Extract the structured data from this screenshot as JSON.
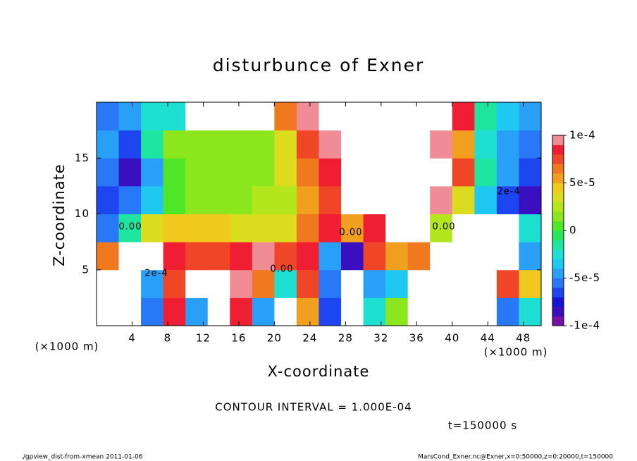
{
  "chart_data": {
    "type": "heatmap",
    "title": "disturbunce of Exner",
    "x_label": "X-coordinate",
    "y_label": "Z-coordinate",
    "x_unit": "(×1000 m)",
    "xlim": [
      0,
      50
    ],
    "ylim": [
      0,
      20
    ],
    "xticks": [
      4,
      8,
      12,
      16,
      20,
      24,
      28,
      32,
      36,
      40,
      44,
      48
    ],
    "yticks": [
      5,
      10,
      15
    ],
    "clim": [
      -0.0001,
      0.0001
    ],
    "cticks": [
      {
        "value": 0.0001,
        "label": "1e-4"
      },
      {
        "value": 5e-05,
        "label": "5e-5"
      },
      0,
      {
        "value": -5e-05,
        "label": "-5e-5"
      },
      {
        "value": -0.0001,
        "label": "-1e-4"
      }
    ],
    "colors": [
      "#7a0fa8",
      "#3a0fc0",
      "#1414d8",
      "#1e46f0",
      "#2878f8",
      "#28a0f8",
      "#1ec8f0",
      "#1ee0d2",
      "#1ee6a0",
      "#28e65a",
      "#50e628",
      "#8ce61e",
      "#b4e61e",
      "#dcdc1e",
      "#f0c81e",
      "#f0a01e",
      "#f0781e",
      "#f04628",
      "#f01e32",
      "#f08c96"
    ],
    "out_of_range_color": "#ffffff",
    "z": [
      [
        0.0002,
        0.0002,
        -6e-05,
        8e-05,
        -5e-05,
        0.0002,
        8e-05,
        -5e-05,
        0.0002,
        5e-05,
        -7e-05,
        0.0002,
        -3e-05,
        1e-05,
        0.0002,
        0.0002,
        -0.0002,
        -0.0002,
        -6e-05,
        -3e-05
      ],
      [
        0.0002,
        0.0002,
        -5e-05,
        7e-05,
        0.0002,
        0.0002,
        9e-05,
        6e-05,
        -3e-05,
        7e-05,
        -6e-05,
        0.0002,
        -5e-05,
        -4e-05,
        -0.0002,
        0.0002,
        -0.0002,
        -0.0002,
        7e-05,
        4e-05
      ],
      [
        6e-05,
        0.0002,
        0.0002,
        8e-05,
        7e-05,
        7e-05,
        8e-05,
        9e-05,
        7e-05,
        8e-05,
        -5e-05,
        -8e-05,
        7e-05,
        5e-05,
        6e-05,
        0.0002,
        -0.0002,
        -0.0002,
        -0.0002,
        -5e-05
      ],
      [
        -6e-05,
        -2e-05,
        3e-05,
        4e-05,
        4e-05,
        4e-05,
        3e-05,
        3e-05,
        3e-05,
        6e-05,
        8e-05,
        5e-05,
        8e-05,
        0.0002,
        0.0002,
        2e-05,
        -0.0002,
        -0.0002,
        -0.0002,
        -3e-05
      ],
      [
        -7e-05,
        -6e-05,
        -4e-05,
        0,
        1e-05,
        1e-05,
        1e-05,
        2e-05,
        2e-05,
        5e-05,
        7e-05,
        0.0002,
        0.0002,
        0.0002,
        0.0002,
        0.0001,
        3e-05,
        -4e-05,
        -7e-05,
        -8e-05
      ],
      [
        -6e-05,
        -8e-05,
        -5e-05,
        0,
        1e-05,
        1e-05,
        1e-05,
        1e-05,
        3e-05,
        6e-05,
        8e-05,
        0.0002,
        0.0002,
        0.0002,
        0.0002,
        0.0002,
        7e-05,
        -2e-05,
        -5e-05,
        -7e-05
      ],
      [
        -5e-05,
        -7e-05,
        -2e-05,
        1e-05,
        1e-05,
        1e-05,
        1e-05,
        1e-05,
        3e-05,
        7e-05,
        9e-05,
        0.0002,
        0.0002,
        0.0002,
        0.0002,
        9e-05,
        5e-05,
        -3e-05,
        -5e-05,
        -6e-05
      ],
      [
        -6e-05,
        -5e-05,
        -3e-05,
        -3e-05,
        0.0002,
        0.0002,
        0.0002,
        0.0002,
        6e-05,
        9e-05,
        0.0002,
        0.0002,
        0.0002,
        0.0002,
        0.0002,
        0.0002,
        8e-05,
        -2e-05,
        -4e-05,
        -5e-05
      ]
    ],
    "contour_labels": [
      "0.00",
      "0.00",
      "0.00",
      "0.00",
      "2e-4",
      "2e-4"
    ],
    "note": "CONTOUR INTERVAL = 1.000E-04",
    "time": "t=150000 s",
    "footer_left": "./gpview_dist-from-xmean  2011-01-06",
    "footer_right": "MarsCond_Exner.nc@Exner,x=0:50000,z=0:20000,t=150000"
  }
}
